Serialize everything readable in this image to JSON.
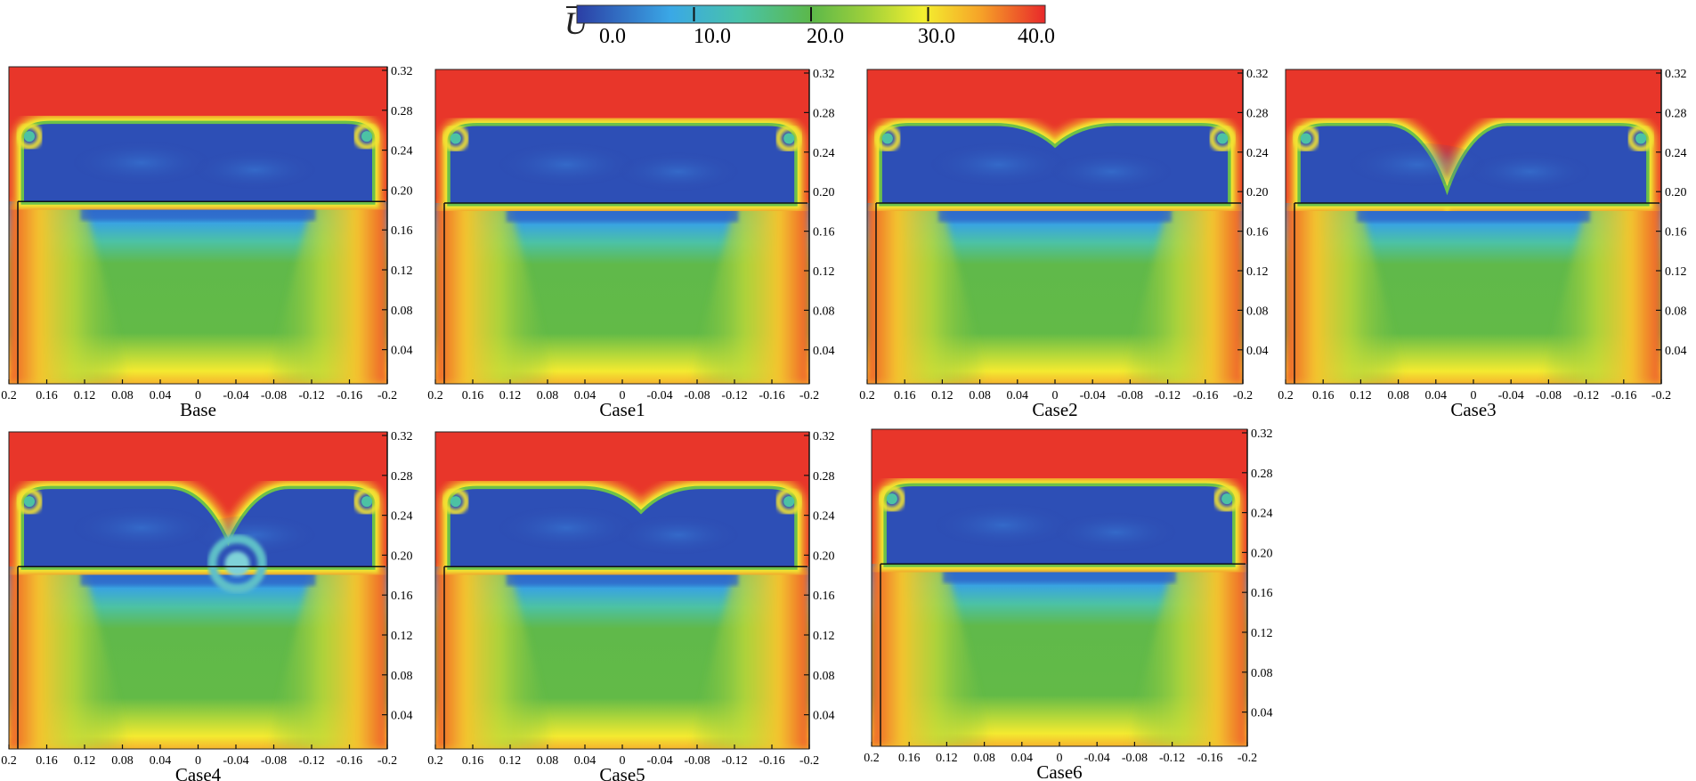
{
  "colorbar": {
    "symbol": "U",
    "overbar": true,
    "min": 0.0,
    "max": 40.0,
    "tick_labels": [
      "0.0",
      "10.0",
      "20.0",
      "30.0",
      "40.0"
    ],
    "colors": [
      "#2b3ea5",
      "#3aa8e6",
      "#49c3a8",
      "#5cb84a",
      "#9fd03a",
      "#f3ef2f",
      "#f6a428",
      "#e8282a"
    ]
  },
  "x_tick_labels": [
    "0.2",
    "0.16",
    "0.12",
    "0.08",
    "0.04",
    "0",
    "-0.04",
    "-0.08",
    "-0.12",
    "-0.16",
    "-0.2"
  ],
  "y_tick_labels": [
    "0.32",
    "0.28",
    "0.24",
    "0.20",
    "0.16",
    "0.12",
    "0.08",
    "0.04"
  ],
  "panels": [
    {
      "name": "Base",
      "dip_center": 0.0,
      "dip_depth": 0.0,
      "swirl": false
    },
    {
      "name": "Case1",
      "dip_center": 0.0,
      "dip_depth": 0.0,
      "swirl": false
    },
    {
      "name": "Case2",
      "dip_center": 0.5,
      "dip_depth": 0.07,
      "swirl": false
    },
    {
      "name": "Case3",
      "dip_center": 0.43,
      "dip_depth": 0.22,
      "swirl": false
    },
    {
      "name": "Case4",
      "dip_center": 0.58,
      "dip_depth": 0.18,
      "swirl": true
    },
    {
      "name": "Case5",
      "dip_center": 0.55,
      "dip_depth": 0.08,
      "swirl": false
    },
    {
      "name": "Case6",
      "dip_center": 0.0,
      "dip_depth": 0.0,
      "swirl": false
    }
  ]
}
